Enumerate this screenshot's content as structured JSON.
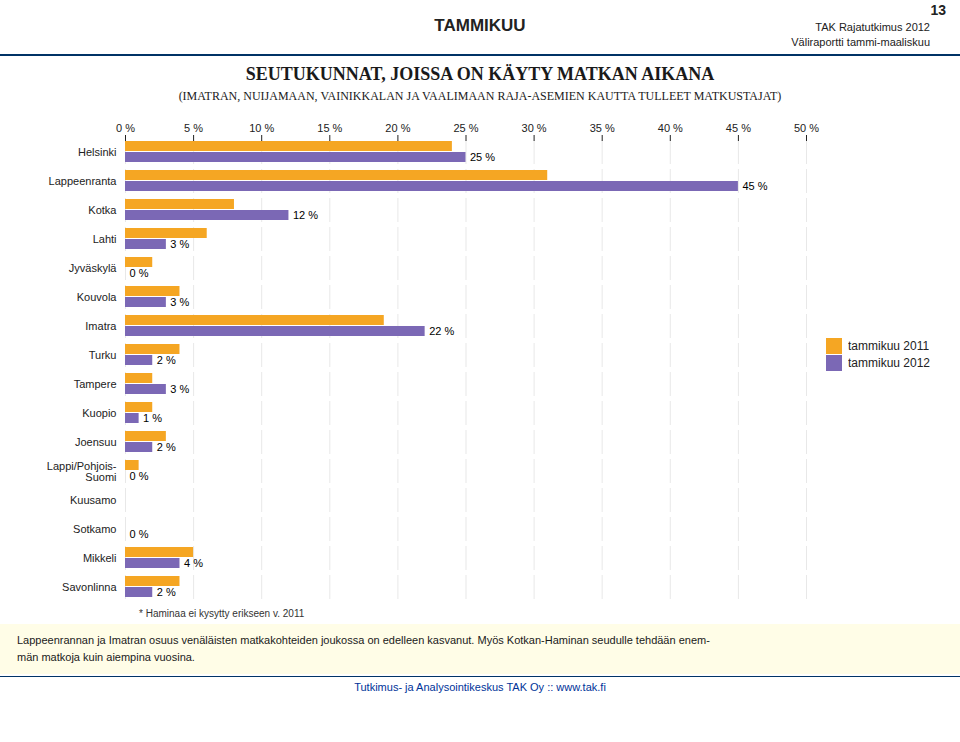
{
  "chart_data": {
    "type": "bar",
    "orientation": "horizontal",
    "title": "SEUTUKUNNAT, JOISSA ON KÄYTY MATKAN AIKANA",
    "subtitle": "(IMATRAN, NUIJAMAAN, VAINIKKALAN JA VAALIMAAN RAJA-ASEMIEN KAUTTA TULLEET MATKUSTAJAT)",
    "annotations": [
      "13",
      "TAMMIKUU",
      "TAK Rajatutkimus 2012",
      "Väliraportti tammi-maaliskuu",
      "* Haminaa ei kysytty erikseen v. 2011",
      "Lappeenrannan ja Imatran osuus venäläisten matkakohteiden joukossa on edelleen kasvanut. Myös Kotkan-Haminan seudulle tehdään enem-",
      "män matkoja kuin aiempina vuosina.",
      "Tutkimus- ja Analysointikeskus TAK Oy :: www.tak.fi"
    ],
    "categories": [
      "Helsinki",
      "Lappeenranta",
      "Kotka",
      "Lahti",
      "Jyväskylä",
      "Kouvola",
      "Imatra",
      "Turku",
      "Tampere",
      "Kuopio",
      "Joensuu",
      "Lappi/Pohjois-\nSuomi",
      "Kuusamo",
      "Sotkamo",
      "Mikkeli",
      "Savonlinna"
    ],
    "series": [
      {
        "name": "tammikuu 2011",
        "color": "#F5A623",
        "values": [
          24,
          31,
          8,
          6,
          2,
          4,
          19,
          4,
          2,
          2,
          3,
          1,
          0,
          0,
          5,
          4
        ]
      },
      {
        "name": "tammikuu 2012",
        "color": "#7B68B5",
        "values": [
          25,
          45,
          12,
          3,
          0,
          3,
          22,
          2,
          3,
          1,
          2,
          0,
          0,
          0,
          4,
          2
        ],
        "value_labels": [
          "25 %",
          "45 %",
          "12 %",
          "3 %",
          "0 %",
          "3 %",
          "22 %",
          "2 %",
          "3 %",
          "1 %",
          "2 %",
          "0 %",
          null,
          "0 %",
          "4 %",
          "2 %"
        ]
      }
    ],
    "data_labels": true,
    "xlim": [
      0,
      50
    ],
    "xticks": [
      {
        "value": 0,
        "label": "0 %"
      },
      {
        "value": 5,
        "label": "5 %"
      },
      {
        "value": 10,
        "label": "10 %"
      },
      {
        "value": 15,
        "label": "15 %"
      },
      {
        "value": 20,
        "label": "20 %"
      },
      {
        "value": 25,
        "label": "25 %"
      },
      {
        "value": 30,
        "label": "30 %"
      },
      {
        "value": 35,
        "label": "35 %"
      },
      {
        "value": 40,
        "label": "40 %"
      },
      {
        "value": 45,
        "label": "45 %"
      },
      {
        "value": 50,
        "label": "50 %"
      }
    ],
    "grid": true,
    "legend": "right"
  }
}
